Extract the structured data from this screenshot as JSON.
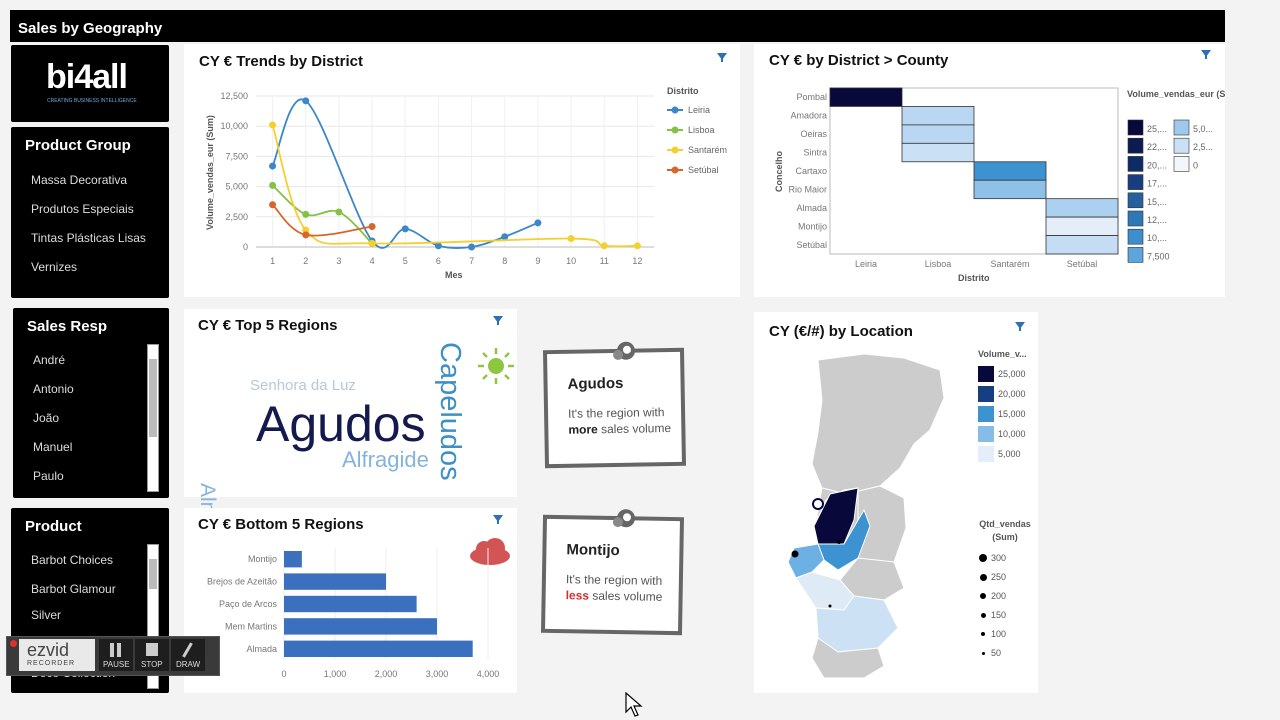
{
  "header": {
    "title": "Sales by Geography"
  },
  "logo": {
    "text": "bi4all",
    "tagline": "CREATING BUSINESS INTELLIGENCE"
  },
  "product_group": {
    "title": "Product Group",
    "items": [
      "Massa Decorativa",
      "Produtos Especiais",
      "Tintas Plásticas Lisas",
      "Vernizes"
    ]
  },
  "sales_resp": {
    "title": "Sales Resp",
    "items": [
      "André",
      "Antonio",
      "João",
      "Manuel",
      "Paulo"
    ]
  },
  "product": {
    "title": "Product",
    "items": [
      "Barbot Choices",
      "Barbot Glamour",
      "Silver",
      "Deco Collection"
    ]
  },
  "trends": {
    "title": "CY € Trends by District",
    "legend_title": "Distrito",
    "ylabel": "Volume_vendas_eur (Sum)",
    "xlabel": "Mes",
    "yticks": [
      "12,500",
      "10,000",
      "7,500",
      "5,000",
      "2,500",
      "0"
    ],
    "xticks": [
      "1",
      "2",
      "3",
      "4",
      "5",
      "6",
      "7",
      "8",
      "9",
      "10",
      "11",
      "12"
    ]
  },
  "chart_data": [
    {
      "type": "line",
      "title": "CY € Trends by District",
      "xlabel": "Mes",
      "ylabel": "Volume_vendas_eur (Sum)",
      "ylim": [
        0,
        12500
      ],
      "x": [
        1,
        2,
        3,
        4,
        5,
        6,
        7,
        8,
        9,
        10,
        11,
        12
      ],
      "series": [
        {
          "name": "Leiria",
          "color": "#3b87c8",
          "points": [
            [
              1,
              6700
            ],
            [
              2,
              12100
            ],
            [
              4,
              500
            ],
            [
              5,
              1500
            ],
            [
              6,
              100
            ],
            [
              7,
              0
            ],
            [
              8,
              850
            ],
            [
              9,
              2000
            ]
          ]
        },
        {
          "name": "Lisboa",
          "color": "#85c146",
          "points": [
            [
              1,
              5100
            ],
            [
              2,
              2700
            ],
            [
              3,
              2900
            ],
            [
              4,
              300
            ]
          ]
        },
        {
          "name": "Santarém",
          "color": "#f4d02e",
          "points": [
            [
              1,
              10100
            ],
            [
              2,
              1400
            ],
            [
              4,
              300
            ],
            [
              10,
              700
            ],
            [
              11,
              100
            ],
            [
              12,
              100
            ]
          ]
        },
        {
          "name": "Setúbal",
          "color": "#d5672a",
          "points": [
            [
              1,
              3500
            ],
            [
              2,
              1000
            ],
            [
              4,
              1700
            ]
          ]
        }
      ]
    },
    {
      "type": "heatmap",
      "title": "CY € by District > County",
      "xlabel": "Distrito",
      "ylabel": "Concelho",
      "columns": [
        "Leiria",
        "Lisboa",
        "Santarém",
        "Setúbal"
      ],
      "rows": [
        "Pombal",
        "Amadora",
        "Oeiras",
        "Sintra",
        "Cartaxo",
        "Rio Maior",
        "Almada",
        "Montijo",
        "Setúbal"
      ],
      "legend_title": "Volume_vendas_eur (Sum)",
      "legend_labels": [
        "25,...",
        "22,...",
        "20,...",
        "17,...",
        "15,...",
        "12,...",
        "10,...",
        "7,500",
        "5,0...",
        "2,5...",
        "0"
      ],
      "cells": [
        {
          "row": "Pombal",
          "col": "Leiria",
          "color": "#08083a"
        },
        {
          "row": "Amadora",
          "col": "Lisboa",
          "color": "#b9d7f2"
        },
        {
          "row": "Oeiras",
          "col": "Lisboa",
          "color": "#b9d7f2"
        },
        {
          "row": "Sintra",
          "col": "Lisboa",
          "color": "#c9e0f5"
        },
        {
          "row": "Cartaxo",
          "col": "Santarém",
          "color": "#3d92d1"
        },
        {
          "row": "Rio Maior",
          "col": "Santarém",
          "color": "#8ec0e8"
        },
        {
          "row": "Almada",
          "col": "Setúbal",
          "color": "#acd0f0"
        },
        {
          "row": "Montijo",
          "col": "Setúbal",
          "color": "#e4eef9"
        },
        {
          "row": "Setúbal",
          "col": "Setúbal",
          "color": "#c4ddf4"
        }
      ]
    },
    {
      "type": "bar",
      "title": "CY € Bottom 5 Regions",
      "orientation": "horizontal",
      "categories": [
        "Montijo",
        "Brejos de Azeitão",
        "Paço de Arcos",
        "Mem Martins",
        "Almada"
      ],
      "values": [
        350,
        2000,
        2600,
        3000,
        3700
      ],
      "xlim": [
        0,
        4000
      ],
      "xticks": [
        "0",
        "1,000",
        "2,000",
        "3,000",
        "4,000"
      ],
      "color": "#3a70bd"
    }
  ],
  "top5": {
    "title": "CY € Top 5 Regions",
    "words": [
      "Agudos",
      "Capeludos",
      "Alfragide",
      "Senhora da Luz",
      "Almada"
    ]
  },
  "bottom5": {
    "title": "CY € Bottom 5 Regions"
  },
  "note_top": {
    "title": "Agudos",
    "pre": "It's the region with ",
    "em": "more",
    "post": " sales volume"
  },
  "note_bottom": {
    "title": "Montijo",
    "pre": "It's the region with ",
    "em": "less",
    "post": " sales volume"
  },
  "heat": {
    "title": "CY € by District > County"
  },
  "map": {
    "title": "CY (€/#) by Location",
    "legend1_title": "Volume_v...",
    "legend1": [
      "25,000",
      "20,000",
      "15,000",
      "10,000",
      "5,000"
    ],
    "legend2_title": "Qtd_vendas (Sum)",
    "legend2": [
      "300",
      "250",
      "200",
      "150",
      "100",
      "50"
    ]
  },
  "recorder": {
    "brand": "ezvid",
    "sub": "RECORDER",
    "pause": "PAUSE",
    "stop": "STOP",
    "draw": "DRAW"
  }
}
